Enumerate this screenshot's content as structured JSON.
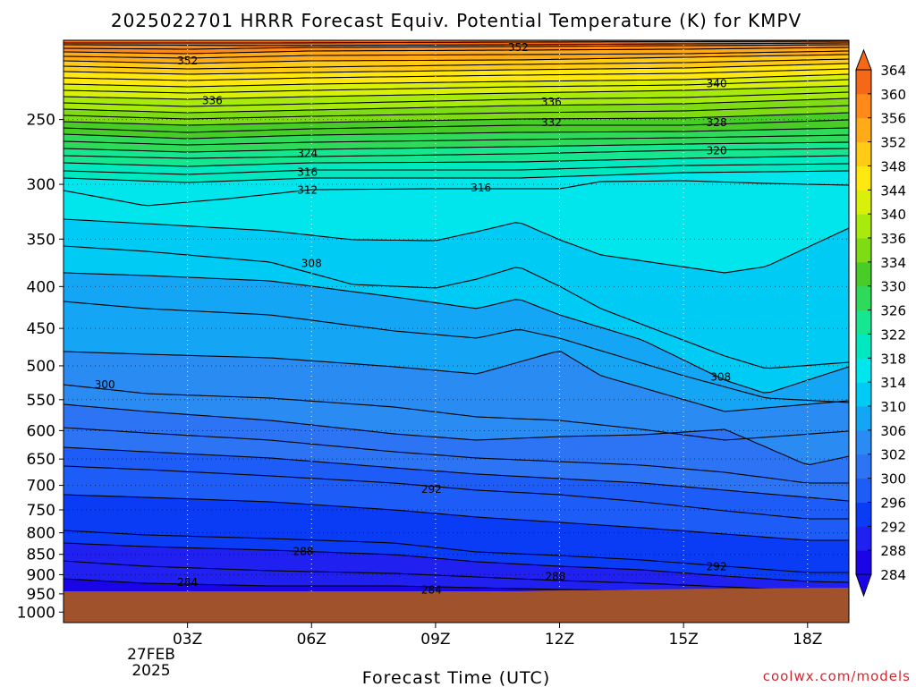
{
  "chart_data": {
    "type": "heatmap",
    "title": "2025022701 HRRR Forecast Equiv. Potential Temperature (K) for KMPV",
    "xlabel": "Forecast Time (UTC)",
    "ylabel": "",
    "credit": "coolwx.com/models",
    "x_range_hours_utc": [
      0,
      19
    ],
    "x_ticks": [
      {
        "hour": 3,
        "label": "03Z"
      },
      {
        "hour": 6,
        "label": "06Z"
      },
      {
        "hour": 9,
        "label": "09Z"
      },
      {
        "hour": 12,
        "label": "12Z"
      },
      {
        "hour": 15,
        "label": "15Z"
      },
      {
        "hour": 18,
        "label": "18Z"
      }
    ],
    "x_date_label": [
      "27FEB",
      "2025"
    ],
    "y_axis_pressure_hPa": {
      "ticks": [
        250,
        300,
        350,
        400,
        450,
        500,
        550,
        600,
        650,
        700,
        750,
        800,
        850,
        900,
        950,
        1000
      ],
      "top_hPa": 200,
      "bottom_hPa": 1030,
      "scale": "log-pressure (inverted)"
    },
    "colorbar": {
      "levels": [
        284,
        288,
        292,
        296,
        300,
        302,
        306,
        310,
        314,
        318,
        322,
        326,
        330,
        334,
        336,
        340,
        344,
        348,
        352,
        356,
        360,
        364
      ],
      "colors": [
        "#1a05e6",
        "#2020f0",
        "#0a3cf6",
        "#1e5cf8",
        "#2d74f5",
        "#2a8cf2",
        "#14a6f5",
        "#00cbf5",
        "#00e6ec",
        "#00e8c0",
        "#15e68f",
        "#2fd95a",
        "#47cc28",
        "#7fdc14",
        "#a8ea0c",
        "#d8f00a",
        "#ffe810",
        "#ffcb14",
        "#ffab18",
        "#ff8a1a",
        "#f46818"
      ],
      "extend": "both"
    },
    "terrain_color": "#a0522d",
    "grid": "dotted",
    "contour_labels": [
      {
        "value": "352",
        "hour": 3.0,
        "hPa": 212
      },
      {
        "value": "352",
        "hour": 11.0,
        "hPa": 204
      },
      {
        "value": "336",
        "hour": 3.6,
        "hPa": 237
      },
      {
        "value": "336",
        "hour": 11.8,
        "hPa": 238
      },
      {
        "value": "332",
        "hour": 11.8,
        "hPa": 252
      },
      {
        "value": "340",
        "hour": 15.8,
        "hPa": 226
      },
      {
        "value": "328",
        "hour": 15.8,
        "hPa": 252
      },
      {
        "value": "320",
        "hour": 15.8,
        "hPa": 273
      },
      {
        "value": "324",
        "hour": 5.9,
        "hPa": 275
      },
      {
        "value": "316",
        "hour": 5.9,
        "hPa": 290
      },
      {
        "value": "312",
        "hour": 5.9,
        "hPa": 305
      },
      {
        "value": "316",
        "hour": 10.1,
        "hPa": 303
      },
      {
        "value": "308",
        "hour": 6.0,
        "hPa": 375
      },
      {
        "value": "308",
        "hour": 15.9,
        "hPa": 516
      },
      {
        "value": "300",
        "hour": 1.0,
        "hPa": 527
      },
      {
        "value": "292",
        "hour": 8.9,
        "hPa": 708
      },
      {
        "value": "288",
        "hour": 5.8,
        "hPa": 843
      },
      {
        "value": "292",
        "hour": 15.8,
        "hPa": 880
      },
      {
        "value": "288",
        "hour": 11.9,
        "hPa": 905
      },
      {
        "value": "284",
        "hour": 3.0,
        "hPa": 920
      },
      {
        "value": "284",
        "hour": 8.9,
        "hPa": 940
      }
    ]
  }
}
